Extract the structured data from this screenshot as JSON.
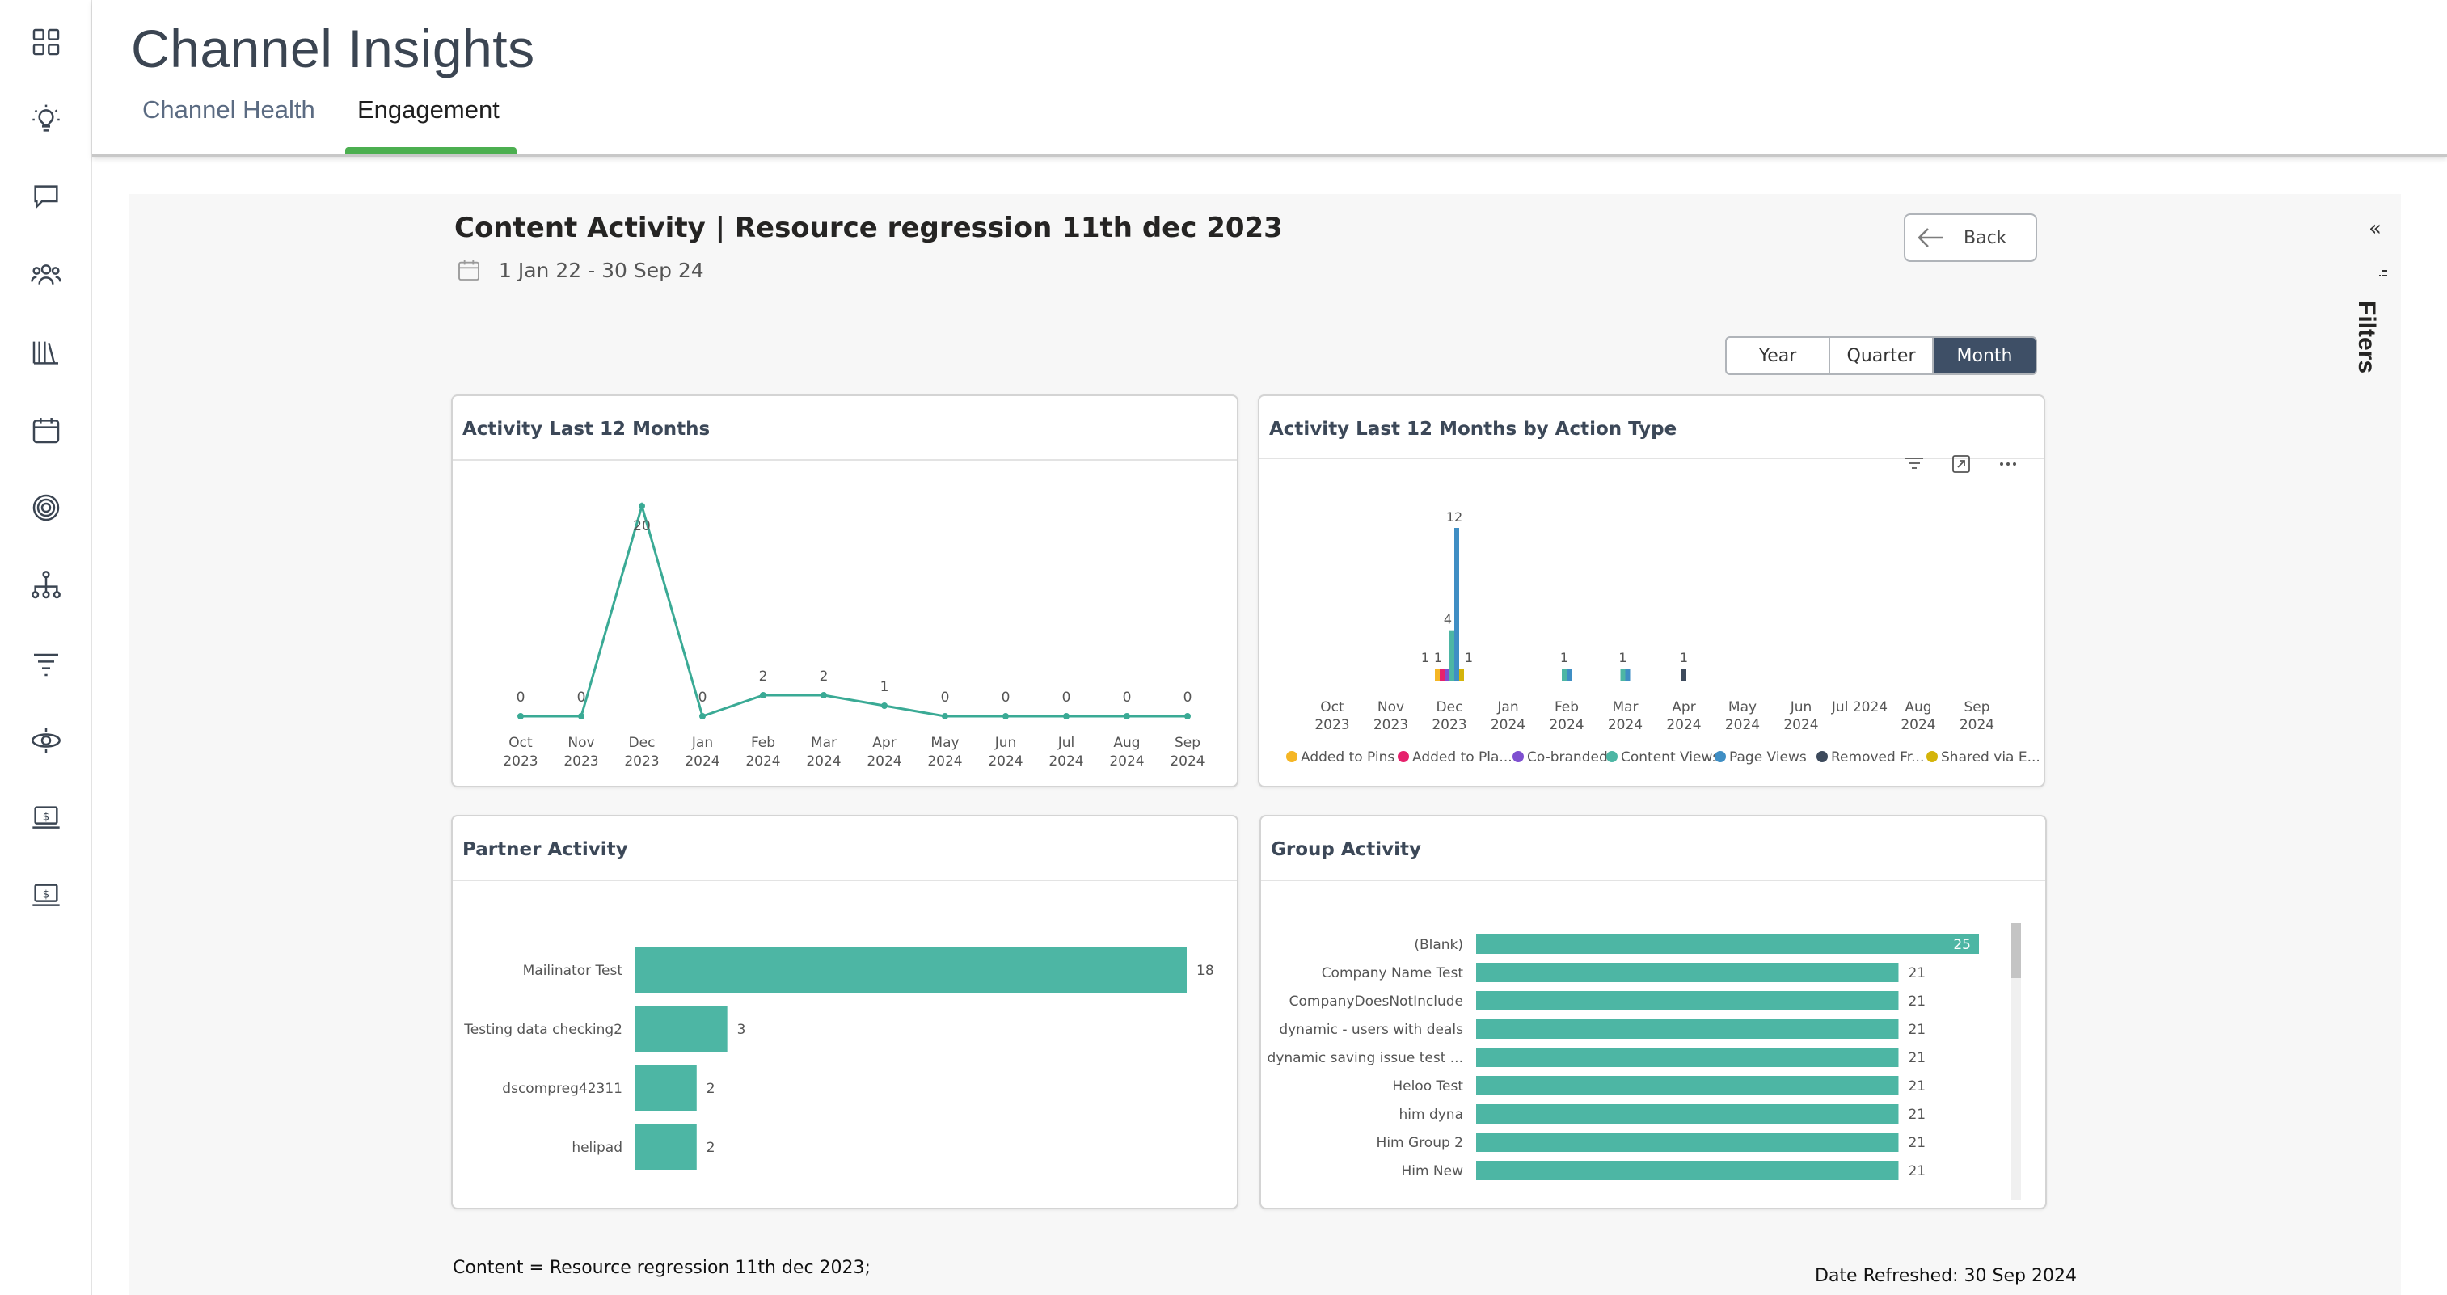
{
  "app": {
    "title": "Channel Insights",
    "tabs": [
      {
        "label": "Channel Health",
        "active": false
      },
      {
        "label": "Engagement",
        "active": true
      }
    ],
    "accent_color": "#4caf50"
  },
  "sidebar": {
    "icons": [
      "dashboard-icon",
      "lightbulb-icon",
      "chat-icon",
      "partners-icon",
      "library-icon",
      "calendar-icon",
      "target-icon",
      "hierarchy-icon",
      "filter-icon",
      "orbit-icon",
      "laptop-dollar-icon",
      "laptop-dollar-icon-2"
    ]
  },
  "report": {
    "title": "Content Activity | Resource regression 11th dec 2023",
    "date_range": "1 Jan 22 - 30 Sep 24",
    "back_label": "Back",
    "period_options": [
      "Year",
      "Quarter",
      "Month"
    ],
    "period_selected": "Month",
    "filters_label": "Filters",
    "footer_left": "Content = Resource regression 11th dec 2023;",
    "footer_right": "Date Refreshed: 30 Sep 2024"
  },
  "chart_data": [
    {
      "type": "line",
      "title": "Activity Last 12 Months",
      "categories": [
        "Oct 2023",
        "Nov 2023",
        "Dec 2023",
        "Jan 2024",
        "Feb 2024",
        "Mar 2024",
        "Apr 2024",
        "May 2024",
        "Jun 2024",
        "Jul 2024",
        "Aug 2024",
        "Sep 2024"
      ],
      "values": [
        0,
        0,
        20,
        0,
        2,
        2,
        1,
        0,
        0,
        0,
        0,
        0
      ],
      "color": "#3aaa95",
      "grid": false
    },
    {
      "type": "bar",
      "stacked": false,
      "title": "Activity Last 12 Months by Action Type",
      "categories": [
        "Oct 2023",
        "Nov 2023",
        "Dec 2023",
        "Jan 2024",
        "Feb 2024",
        "Mar 2024",
        "Apr 2024",
        "May 2024",
        "Jun 2024",
        "Jul 2024",
        "Aug 2024",
        "Sep 2024"
      ],
      "series": [
        {
          "name": "Added to Pins",
          "color": "#f5b625",
          "values": [
            0,
            0,
            1,
            0,
            0,
            0,
            0,
            0,
            0,
            0,
            0,
            0
          ]
        },
        {
          "name": "Added to Pla...",
          "color": "#e6216c",
          "values": [
            0,
            0,
            1,
            0,
            0,
            0,
            0,
            0,
            0,
            0,
            0,
            0
          ]
        },
        {
          "name": "Co-branded",
          "color": "#7e4fd0",
          "values": [
            0,
            0,
            1,
            0,
            0,
            0,
            0,
            0,
            0,
            0,
            0,
            0
          ]
        },
        {
          "name": "Content Views",
          "color": "#4db6a4",
          "values": [
            0,
            0,
            4,
            0,
            1,
            1,
            0,
            0,
            0,
            0,
            0,
            0
          ]
        },
        {
          "name": "Page Views",
          "color": "#3f8ec4",
          "values": [
            0,
            0,
            12,
            0,
            1,
            1,
            0,
            0,
            0,
            0,
            0,
            0
          ]
        },
        {
          "name": "Removed Fr...",
          "color": "#3d4a5c",
          "values": [
            0,
            0,
            0,
            0,
            0,
            0,
            1,
            0,
            0,
            0,
            0,
            0
          ]
        },
        {
          "name": "Shared via E...",
          "color": "#d4b40a",
          "values": [
            0,
            0,
            1,
            0,
            0,
            0,
            0,
            0,
            0,
            0,
            0,
            0
          ]
        }
      ],
      "data_labels": [
        {
          "category": "Dec 2023",
          "labels": [
            "1",
            "1",
            "4",
            "12",
            "1"
          ]
        },
        {
          "category": "Feb 2024",
          "labels": [
            "1"
          ]
        },
        {
          "category": "Mar 2024",
          "labels": [
            "1"
          ]
        },
        {
          "category": "Apr 2024",
          "labels": [
            "1"
          ]
        }
      ],
      "legend_position": "bottom"
    },
    {
      "type": "bar",
      "orientation": "horizontal",
      "title": "Partner Activity",
      "categories": [
        "Mailinator Test",
        "Testing data checking2",
        "dscompreg42311",
        "helipad"
      ],
      "values": [
        18,
        3,
        2,
        2
      ],
      "color": "#4db6a4"
    },
    {
      "type": "bar",
      "orientation": "horizontal",
      "title": "Group Activity",
      "categories": [
        "(Blank)",
        "Company Name Test",
        "CompanyDoesNotInclude",
        "dynamic - users with deals",
        "dynamic saving issue test ...",
        "Heloo Test",
        "him dyna",
        "Him Group 2",
        "Him New"
      ],
      "values": [
        25,
        21,
        21,
        21,
        21,
        21,
        21,
        21,
        21
      ],
      "color": "#4db6a4"
    }
  ]
}
